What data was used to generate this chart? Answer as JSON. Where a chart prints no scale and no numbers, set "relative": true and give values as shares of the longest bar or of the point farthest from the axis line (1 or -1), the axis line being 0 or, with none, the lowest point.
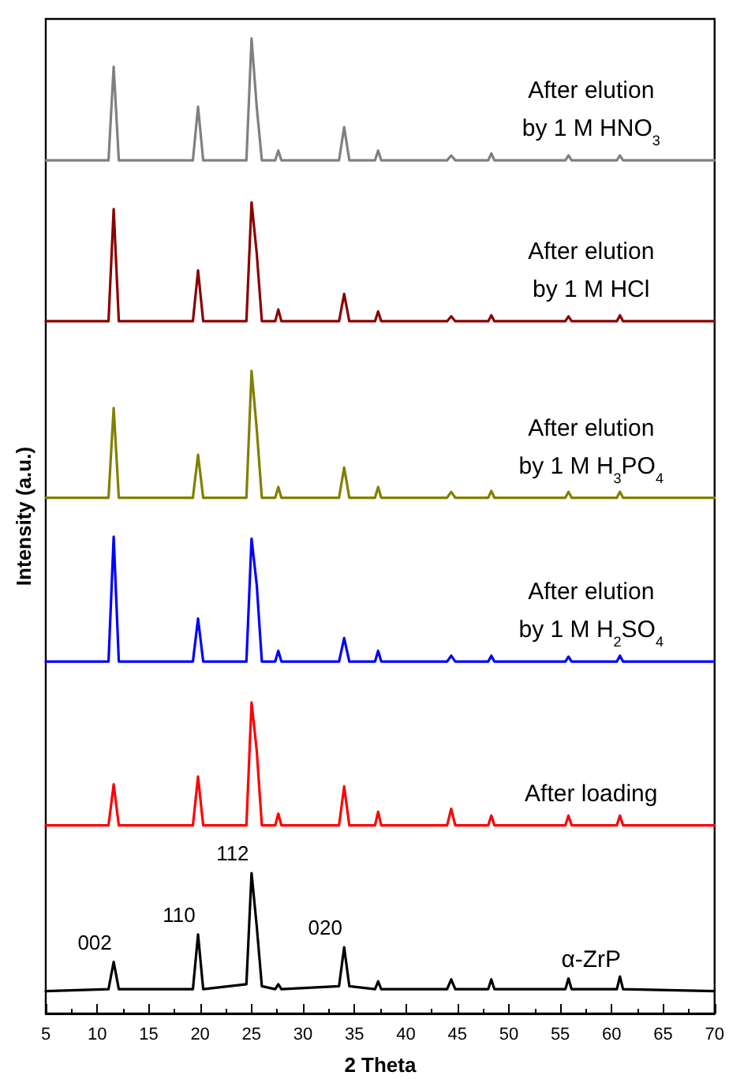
{
  "chart_data": {
    "type": "line",
    "relative": true,
    "xlabel": "2 Theta",
    "ylabel": "Intensity (a.u.)",
    "x": [
      5,
      11.1,
      11.6,
      12.1,
      19.3,
      19.8,
      20.3,
      24.5,
      25,
      25.5,
      26,
      27.3,
      27.6,
      27.9,
      33.5,
      34,
      34.5,
      37,
      37.3,
      37.6,
      44,
      44.4,
      44.8,
      48,
      48.3,
      48.6,
      55.5,
      55.8,
      56.1,
      60.5,
      60.8,
      61.1,
      70
    ],
    "xlim": [
      5,
      70
    ],
    "xticks": [
      5,
      10,
      15,
      20,
      25,
      30,
      35,
      40,
      45,
      50,
      55,
      60,
      65,
      70
    ],
    "grid": false,
    "legend": false,
    "marker": "none",
    "line_style": "solid",
    "series": [
      {
        "name": "After elution\nby 1 M HNO$_{3}$",
        "color": "#808080",
        "values": [
          0.875,
          0.875,
          0.971,
          0.875,
          0.875,
          0.93,
          0.875,
          0.875,
          1,
          0.93,
          0.875,
          0.875,
          0.885,
          0.875,
          0.875,
          0.909,
          0.875,
          0.875,
          0.885,
          0.875,
          0.875,
          0.88,
          0.875,
          0.875,
          0.882,
          0.875,
          0.875,
          0.88,
          0.875,
          0.875,
          0.88,
          0.875,
          0.875
        ]
      },
      {
        "name": "After elution\nby 1 M HCl",
        "color": "#8b0000",
        "values": [
          0.71,
          0.71,
          0.825,
          0.71,
          0.71,
          0.762,
          0.71,
          0.71,
          0.832,
          0.78,
          0.71,
          0.71,
          0.722,
          0.71,
          0.71,
          0.738,
          0.71,
          0.71,
          0.72,
          0.71,
          0.71,
          0.715,
          0.71,
          0.71,
          0.716,
          0.71,
          0.71,
          0.715,
          0.71,
          0.71,
          0.716,
          0.71,
          0.71
        ]
      },
      {
        "name": "After elution\nby 1 M H$_{3}$PO$_{4}$",
        "color": "#808000",
        "values": [
          0.529,
          0.529,
          0.621,
          0.529,
          0.529,
          0.573,
          0.529,
          0.529,
          0.659,
          0.6,
          0.529,
          0.529,
          0.54,
          0.529,
          0.529,
          0.56,
          0.529,
          0.529,
          0.54,
          0.529,
          0.529,
          0.535,
          0.529,
          0.529,
          0.536,
          0.529,
          0.529,
          0.535,
          0.529,
          0.529,
          0.535,
          0.529,
          0.529
        ]
      },
      {
        "name": "After elution\nby 1 M H$_{2}$SO$_{4}$",
        "color": "#0000ff",
        "values": [
          0.361,
          0.361,
          0.489,
          0.361,
          0.361,
          0.405,
          0.361,
          0.361,
          0.487,
          0.44,
          0.361,
          0.361,
          0.372,
          0.361,
          0.361,
          0.385,
          0.361,
          0.361,
          0.372,
          0.361,
          0.361,
          0.367,
          0.361,
          0.361,
          0.367,
          0.361,
          0.361,
          0.366,
          0.361,
          0.361,
          0.367,
          0.361,
          0.361
        ]
      },
      {
        "name": "After loading",
        "color": "#ff0000",
        "values": [
          0.193,
          0.193,
          0.235,
          0.193,
          0.193,
          0.243,
          0.193,
          0.193,
          0.319,
          0.27,
          0.193,
          0.193,
          0.205,
          0.193,
          0.193,
          0.233,
          0.193,
          0.193,
          0.207,
          0.193,
          0.193,
          0.21,
          0.193,
          0.193,
          0.203,
          0.193,
          0.193,
          0.203,
          0.193,
          0.193,
          0.203,
          0.193,
          0.193
        ]
      },
      {
        "name": "α-ZrP",
        "color": "#000000",
        "values": [
          0.023,
          0.025,
          0.053,
          0.025,
          0.025,
          0.081,
          0.025,
          0.03,
          0.144,
          0.09,
          0.028,
          0.025,
          0.03,
          0.025,
          0.028,
          0.068,
          0.028,
          0.025,
          0.033,
          0.025,
          0.025,
          0.035,
          0.025,
          0.025,
          0.035,
          0.025,
          0.025,
          0.036,
          0.025,
          0.025,
          0.038,
          0.025,
          0.023
        ]
      }
    ],
    "annotations": [
      {
        "text": "002",
        "x": 11.6,
        "y": 0.053
      },
      {
        "text": "110",
        "x": 19.8,
        "y": 0.081
      },
      {
        "text": "112",
        "x": 25,
        "y": 0.144
      },
      {
        "text": "020",
        "x": 34,
        "y": 0.068
      }
    ]
  }
}
